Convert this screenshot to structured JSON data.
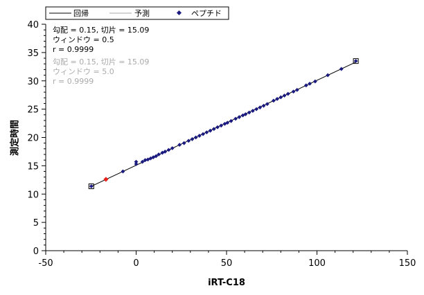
{
  "chart_data": {
    "type": "scatter",
    "xlabel": "iRT-C18",
    "ylabel": "測定時間",
    "xlim": [
      -50,
      150
    ],
    "ylim": [
      0,
      40
    ],
    "x_ticks": [
      -50,
      0,
      50,
      100,
      150
    ],
    "y_ticks": [
      0,
      5,
      10,
      15,
      20,
      25,
      30,
      35,
      40
    ],
    "grid": false,
    "legend": {
      "position": "top-left",
      "entries": [
        "回帰",
        "予測",
        "ペプチド"
      ]
    },
    "stats_regression": {
      "line1": "勾配 = 0.15, 切片 = 15.09",
      "line2": "ウィンドウ = 0.5",
      "line3": "r = 0.9999"
    },
    "stats_predicted": {
      "line1": "勾配 = 0.15, 切片 = 15.09",
      "line2": "ウィンドウ = 5.0",
      "line3": "r = 0.9999"
    },
    "regression_line": {
      "slope": 0.15,
      "intercept": 15.09,
      "x_start": -24.8,
      "x_end": 121.5
    },
    "series": [
      {
        "name": "ペプチド",
        "color": "#1a1a80",
        "points": [
          [
            -24.8,
            11.37
          ],
          [
            -7.3,
            14.0
          ],
          [
            0,
            15.3
          ],
          [
            0,
            15.7
          ],
          [
            3.5,
            15.7
          ],
          [
            5.0,
            16.0
          ],
          [
            6.5,
            16.1
          ],
          [
            8.0,
            16.3
          ],
          [
            9.5,
            16.5
          ],
          [
            11.0,
            16.7
          ],
          [
            12.5,
            17.0
          ],
          [
            14.5,
            17.3
          ],
          [
            16.0,
            17.5
          ],
          [
            18.0,
            17.8
          ],
          [
            20.0,
            18.1
          ],
          [
            24.0,
            18.7
          ],
          [
            26.5,
            19.0
          ],
          [
            29.0,
            19.4
          ],
          [
            31.0,
            19.7
          ],
          [
            33.0,
            20.0
          ],
          [
            35.0,
            20.3
          ],
          [
            37.0,
            20.6
          ],
          [
            39.0,
            20.9
          ],
          [
            41.0,
            21.2
          ],
          [
            43.0,
            21.5
          ],
          [
            45.0,
            21.8
          ],
          [
            47.0,
            22.1
          ],
          [
            49.0,
            22.4
          ],
          [
            50.5,
            22.6
          ],
          [
            52.5,
            22.9
          ],
          [
            55.0,
            23.3
          ],
          [
            57.0,
            23.6
          ],
          [
            59.0,
            23.9
          ],
          [
            60.5,
            24.1
          ],
          [
            62.5,
            24.4
          ],
          [
            64.5,
            24.7
          ],
          [
            66.5,
            25.0
          ],
          [
            68.5,
            25.3
          ],
          [
            70.5,
            25.6
          ],
          [
            72.5,
            25.9
          ],
          [
            76.0,
            26.5
          ],
          [
            78.0,
            26.8
          ],
          [
            80.0,
            27.1
          ],
          [
            82.0,
            27.4
          ],
          [
            84.0,
            27.7
          ],
          [
            87.0,
            28.1
          ],
          [
            89.0,
            28.4
          ],
          [
            94.0,
            29.2
          ],
          [
            96.0,
            29.5
          ],
          [
            99.0,
            29.9
          ],
          [
            106.0,
            31.0
          ],
          [
            113.5,
            32.1
          ],
          [
            121.5,
            33.5
          ]
        ]
      },
      {
        "name": "highlight",
        "color": "#e8231d",
        "points": [
          [
            -16.7,
            12.6
          ]
        ]
      }
    ],
    "boxed_points": [
      [
        -24.8,
        11.37
      ],
      [
        121.5,
        33.5
      ]
    ]
  }
}
